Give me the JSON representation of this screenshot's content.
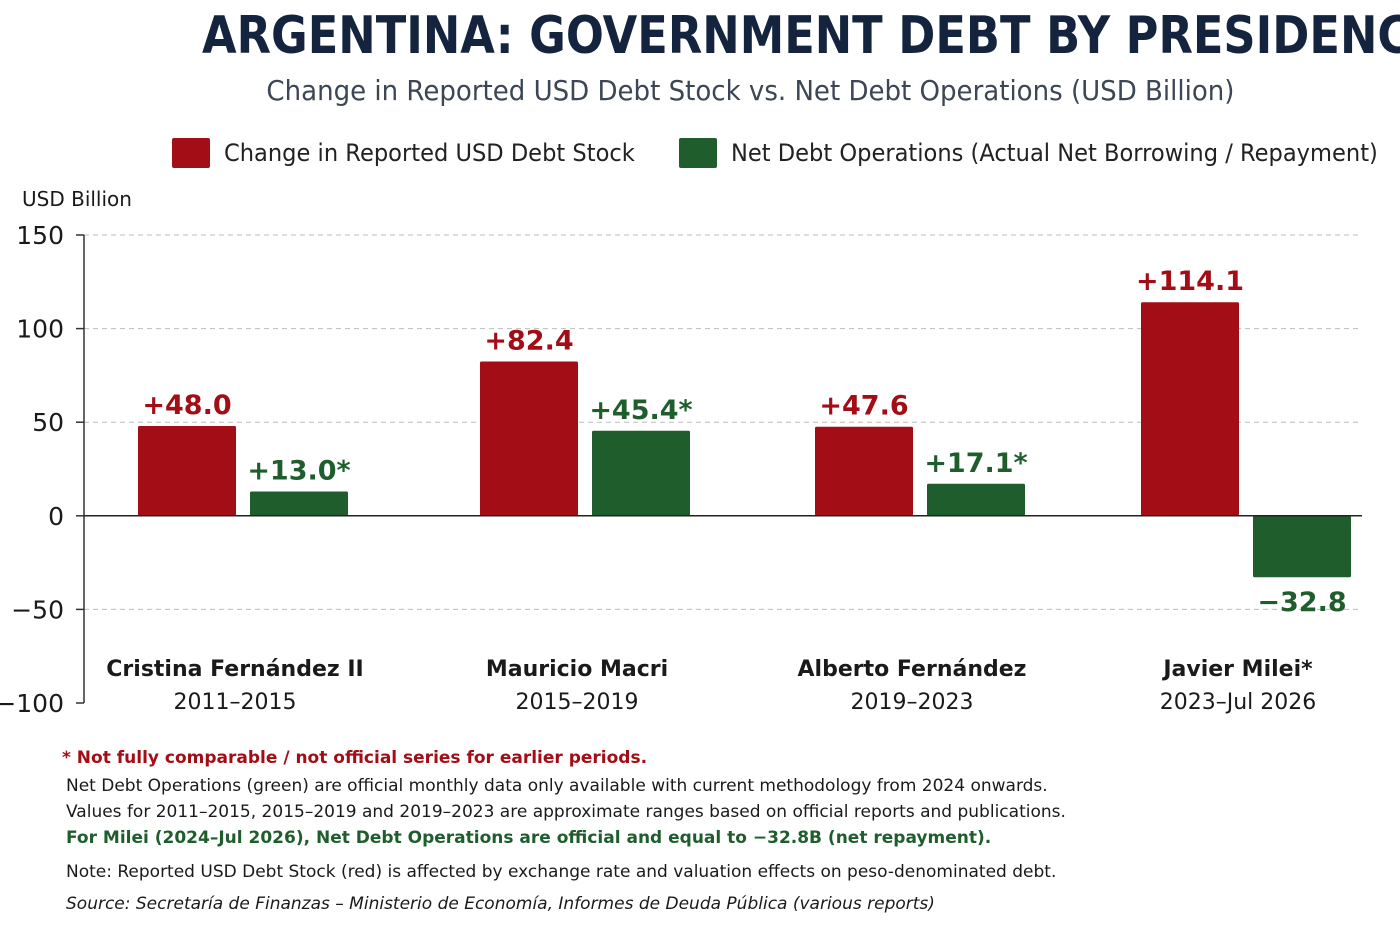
{
  "chart_data": {
    "type": "bar",
    "title": "ARGENTINA: GOVERNMENT DEBT BY PRESIDENCY",
    "subtitle": "Change in Reported USD Debt Stock vs. Net Debt Operations (USD Billion)",
    "ylabel": "USD Billion",
    "ylim": [
      -100,
      150
    ],
    "yticks": [
      150,
      100,
      50,
      0,
      -50,
      -100
    ],
    "ytick_labels": [
      "150",
      "100",
      "50",
      "0",
      "−50",
      "−100"
    ],
    "grid": true,
    "legend_position": "top",
    "categories": [
      {
        "name": "Cristina Fernández II",
        "period": "2011–2015"
      },
      {
        "name": "Mauricio Macri",
        "period": "2015–2019"
      },
      {
        "name": "Alberto Fernández",
        "period": "2019–2023"
      },
      {
        "name": "Javier Milei*",
        "period": "2023–Jul 2026"
      }
    ],
    "series": [
      {
        "name": "Change in Reported USD Debt Stock",
        "color": "#a30d15",
        "values": [
          48.0,
          82.4,
          47.6,
          114.1
        ],
        "labels": [
          "+48.0",
          "+82.4",
          "+47.6",
          "+114.1"
        ]
      },
      {
        "name": "Net Debt Operations (Actual Net Borrowing / Repayment)",
        "color": "#1f5e2c",
        "values": [
          13.0,
          45.4,
          17.1,
          -32.8
        ],
        "labels": [
          "+13.0*",
          "+45.4*",
          "+17.1*",
          "−32.8"
        ]
      }
    ]
  },
  "notes": {
    "asterisk": "* Not fully comparable / not official series for earlier periods.",
    "line1": "Net Debt Operations (green) are official monthly data only available with current methodology from 2024 onwards.",
    "line2": "Values for 2011–2015, 2015–2019 and 2019–2023 are approximate ranges based on official reports and publications.",
    "milei": "For Milei (2024–Jul 2026), Net Debt Operations are official and equal to −32.8B (net repayment).",
    "valuation": "Note: Reported USD Debt Stock (red) is affected by exchange rate and valuation effects on peso-denominated debt.",
    "source": "Source: Secretaría de Finanzas – Ministerio de Economía, Informes de Deuda Pública (various reports)"
  }
}
